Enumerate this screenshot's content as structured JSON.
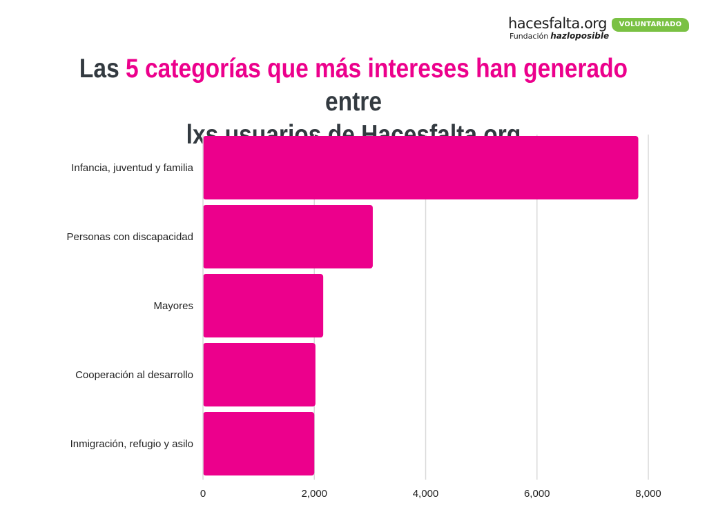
{
  "logo": {
    "brand": "hacesfalta.org",
    "sub_prefix": "Fundación",
    "sub_strong": "hazloposible",
    "badge": "VOLUNTARIADO",
    "badge_color": "#7ac143"
  },
  "title": {
    "part1": "Las ",
    "highlight": "5 categorías que más intereses han generado",
    "part2": " entre",
    "line2": "lxs usuarios de Hacesfalta.org"
  },
  "colors": {
    "bar": "#ec008c",
    "grid": "#d9d9d9",
    "text": "#333a40"
  },
  "chart_data": {
    "type": "bar",
    "orientation": "horizontal",
    "categories": [
      "Infancia, juventud y familia",
      "Personas con discapacidad",
      "Mayores",
      "Cooperación al desarrollo",
      "Inmigración, refugio y asilo"
    ],
    "values": [
      7820,
      3050,
      2160,
      2020,
      2000
    ],
    "xlim": [
      0,
      8000
    ],
    "xticks": [
      0,
      2000,
      4000,
      6000,
      8000
    ],
    "xtick_labels": [
      "0",
      "2,000",
      "4,000",
      "6,000",
      "8,000"
    ],
    "grid": true,
    "legend": "none"
  }
}
